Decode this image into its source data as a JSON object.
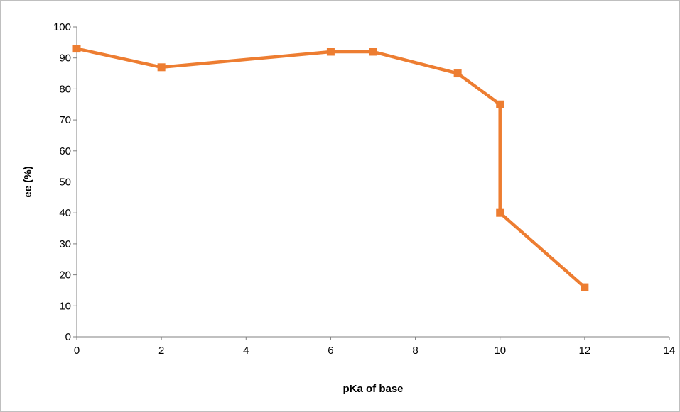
{
  "chart_data": {
    "type": "line",
    "title": "",
    "xlabel": "pKa of base",
    "ylabel": "ee (%)",
    "xlim": [
      0,
      14
    ],
    "ylim": [
      0,
      100
    ],
    "x_ticks": [
      "0",
      "2",
      "4",
      "6",
      "8",
      "10",
      "12",
      "14"
    ],
    "y_ticks": [
      "0",
      "10",
      "20",
      "30",
      "40",
      "50",
      "60",
      "70",
      "80",
      "90",
      "100"
    ],
    "grid": false,
    "legend": "none",
    "series": [
      {
        "color": "#ed7d31",
        "marker": "square",
        "x": [
          0,
          2,
          6,
          7,
          9,
          10,
          10,
          12
        ],
        "y": [
          93,
          87,
          92,
          92,
          85,
          75,
          40,
          16
        ]
      }
    ]
  }
}
